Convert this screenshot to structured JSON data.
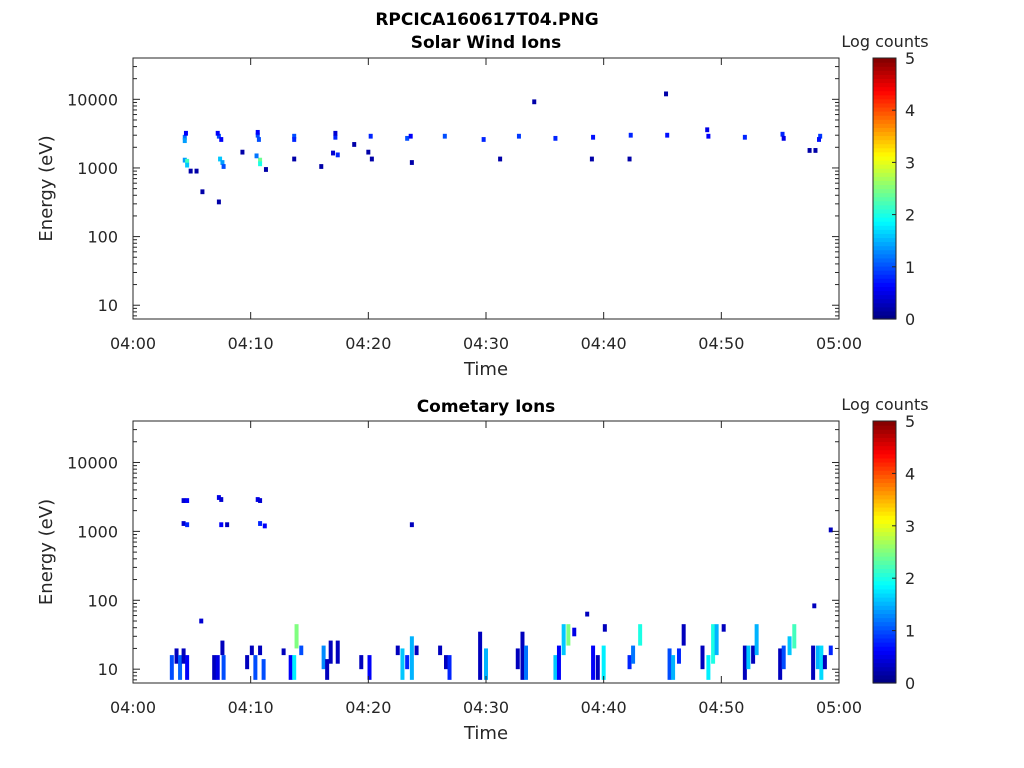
{
  "figure_title": "RPCICA160617T04.PNG",
  "chart_data": [
    {
      "type": "heatmap",
      "title": "Solar Wind Ions",
      "xlabel": "Time",
      "ylabel": "Energy (eV)",
      "x_unit": "minutes after 04:00",
      "xlim": [
        0,
        60
      ],
      "ylim": [
        6.3,
        40000
      ],
      "yscale": "log",
      "xticks": [
        "04:00",
        "04:10",
        "04:20",
        "04:30",
        "04:40",
        "04:50",
        "05:00"
      ],
      "yticks": [
        "10",
        "100",
        "1000",
        "10000"
      ],
      "colorbar": {
        "label": "Log counts",
        "range": [
          0,
          5
        ],
        "ticks": [
          "0",
          "1",
          "2",
          "3",
          "4",
          "5"
        ],
        "colormap": "jet"
      },
      "cells_format": "[minute, energy_eV, log_counts]",
      "cells": [
        [
          4.4,
          2800,
          1.2
        ],
        [
          4.4,
          2500,
          1.4
        ],
        [
          4.5,
          3200,
          0.6
        ],
        [
          4.4,
          1300,
          1.4
        ],
        [
          4.6,
          1250,
          2.2
        ],
        [
          4.6,
          1100,
          1.6
        ],
        [
          4.9,
          900,
          0.2
        ],
        [
          5.4,
          900,
          0.2
        ],
        [
          7.3,
          2900,
          1.0
        ],
        [
          7.2,
          3200,
          0.6
        ],
        [
          7.5,
          2600,
          0.6
        ],
        [
          7.4,
          1350,
          1.6
        ],
        [
          7.6,
          1200,
          1.4
        ],
        [
          7.7,
          1050,
          1.0
        ],
        [
          10.6,
          3000,
          1.0
        ],
        [
          10.6,
          3300,
          0.6
        ],
        [
          10.7,
          2600,
          1.0
        ],
        [
          10.8,
          1300,
          2.4
        ],
        [
          10.8,
          1150,
          2.0
        ],
        [
          10.5,
          1500,
          1.2
        ],
        [
          11.3,
          950,
          0.2
        ],
        [
          13.7,
          2900,
          1.0
        ],
        [
          13.7,
          2600,
          0.8
        ],
        [
          17.2,
          2800,
          0.8
        ],
        [
          17.2,
          3200,
          0.4
        ],
        [
          17.4,
          1550,
          0.8
        ],
        [
          17.0,
          1650,
          0.4
        ],
        [
          20.2,
          2900,
          0.8
        ],
        [
          23.3,
          2700,
          1.0
        ],
        [
          23.6,
          2900,
          0.6
        ],
        [
          26.5,
          2900,
          1.0
        ],
        [
          29.8,
          2600,
          0.8
        ],
        [
          32.8,
          2900,
          0.9
        ],
        [
          35.9,
          2700,
          0.8
        ],
        [
          39.1,
          2800,
          0.7
        ],
        [
          42.3,
          3000,
          0.8
        ],
        [
          45.4,
          3000,
          0.7
        ],
        [
          48.8,
          3600,
          0.5
        ],
        [
          48.9,
          2900,
          0.6
        ],
        [
          52.0,
          2800,
          0.8
        ],
        [
          55.2,
          3100,
          0.8
        ],
        [
          55.3,
          2700,
          0.5
        ],
        [
          58.4,
          2900,
          0.9
        ],
        [
          58.3,
          2600,
          0.7
        ],
        [
          34.1,
          9200,
          0.2
        ],
        [
          45.3,
          12000,
          0.2
        ],
        [
          5.9,
          450,
          0.2
        ],
        [
          7.3,
          320,
          0.2
        ],
        [
          9.3,
          1700,
          0.2
        ],
        [
          13.7,
          1350,
          0.2
        ],
        [
          16.0,
          1050,
          0.2
        ],
        [
          18.8,
          2200,
          0.2
        ],
        [
          20.0,
          1700,
          0.2
        ],
        [
          20.3,
          1350,
          0.2
        ],
        [
          23.7,
          1200,
          0.2
        ],
        [
          31.2,
          1350,
          0.2
        ],
        [
          39.0,
          1350,
          0.2
        ],
        [
          42.2,
          1350,
          0.2
        ],
        [
          57.5,
          1800,
          0.2
        ],
        [
          58.0,
          1800,
          0.2
        ]
      ]
    },
    {
      "type": "heatmap",
      "title": "Cometary Ions",
      "xlabel": "Time",
      "ylabel": "Energy (eV)",
      "x_unit": "minutes after 04:00",
      "xlim": [
        0,
        60
      ],
      "ylim": [
        6.3,
        40000
      ],
      "yscale": "log",
      "xticks": [
        "04:00",
        "04:10",
        "04:20",
        "04:30",
        "04:40",
        "04:50",
        "05:00"
      ],
      "yticks": [
        "10",
        "100",
        "1000",
        "10000"
      ],
      "colorbar": {
        "label": "Log counts",
        "range": [
          0,
          5
        ],
        "ticks": [
          "0",
          "1",
          "2",
          "3",
          "4",
          "5"
        ],
        "colormap": "jet"
      },
      "cells_format": "[minute, energy_eV, log_counts]",
      "cells": [
        [
          4.3,
          2800,
          0.4
        ],
        [
          4.6,
          2800,
          0.6
        ],
        [
          4.3,
          1300,
          0.4
        ],
        [
          4.6,
          1250,
          0.8
        ],
        [
          7.3,
          3100,
          0.5
        ],
        [
          7.5,
          2900,
          0.4
        ],
        [
          7.5,
          1250,
          0.6
        ],
        [
          8.0,
          1250,
          0.3
        ],
        [
          10.6,
          2900,
          0.5
        ],
        [
          10.8,
          2800,
          0.4
        ],
        [
          10.8,
          1300,
          0.8
        ],
        [
          11.2,
          1200,
          0.6
        ],
        [
          23.7,
          1250,
          0.3
        ],
        [
          59.3,
          1050,
          0.3
        ],
        [
          5.8,
          50,
          0.4
        ],
        [
          38.6,
          63,
          0.3
        ],
        [
          57.9,
          83,
          0.3
        ]
      ],
      "columns_format": "[minute, energy_low_eV, energy_high_eV, log_counts]",
      "columns": [
        [
          3.3,
          7,
          16,
          1.0
        ],
        [
          3.7,
          12,
          20,
          0.3
        ],
        [
          4.0,
          7,
          16,
          1.1
        ],
        [
          4.3,
          12,
          20,
          0.3
        ],
        [
          4.6,
          7,
          16,
          0.6
        ],
        [
          6.9,
          7,
          16,
          0.3
        ],
        [
          7.2,
          7,
          16,
          0.5
        ],
        [
          7.6,
          16,
          26,
          0.3
        ],
        [
          7.7,
          7,
          16,
          1.0
        ],
        [
          9.7,
          10,
          16,
          0.3
        ],
        [
          10.1,
          16,
          22,
          0.3
        ],
        [
          10.4,
          7,
          16,
          1.0
        ],
        [
          10.8,
          16,
          22,
          0.3
        ],
        [
          11.1,
          7,
          14,
          1.0
        ],
        [
          12.8,
          16,
          20,
          0.3
        ],
        [
          13.4,
          7,
          16,
          0.6
        ],
        [
          13.7,
          7,
          16,
          1.8
        ],
        [
          13.9,
          20,
          45,
          2.5
        ],
        [
          14.3,
          16,
          22,
          1.0
        ],
        [
          16.2,
          10,
          22,
          1.3
        ],
        [
          16.5,
          7,
          14,
          0.3
        ],
        [
          16.8,
          12,
          26,
          0.3
        ],
        [
          17.4,
          12,
          26,
          0.3
        ],
        [
          19.4,
          10,
          16,
          0.3
        ],
        [
          20.1,
          7,
          16,
          0.6
        ],
        [
          22.5,
          16,
          22,
          0.3
        ],
        [
          22.9,
          7,
          20,
          1.6
        ],
        [
          23.3,
          10,
          16,
          0.8
        ],
        [
          23.7,
          7,
          30,
          1.5
        ],
        [
          24.1,
          16,
          22,
          0.3
        ],
        [
          26.1,
          16,
          22,
          0.3
        ],
        [
          26.6,
          10,
          16,
          0.3
        ],
        [
          26.9,
          7,
          16,
          0.8
        ],
        [
          29.5,
          7,
          35,
          0.3
        ],
        [
          30.0,
          7,
          20,
          1.5
        ],
        [
          32.7,
          10,
          20,
          0.3
        ],
        [
          33.1,
          7,
          35,
          0.3
        ],
        [
          33.4,
          7,
          22,
          1.2
        ],
        [
          35.9,
          7,
          16,
          1.6
        ],
        [
          36.2,
          7,
          22,
          0.6
        ],
        [
          36.6,
          16,
          45,
          1.6
        ],
        [
          37.0,
          22,
          45,
          2.5
        ],
        [
          37.5,
          30,
          40,
          0.5
        ],
        [
          39.1,
          7,
          22,
          0.6
        ],
        [
          39.5,
          7,
          16,
          0.3
        ],
        [
          40.0,
          7,
          22,
          1.8
        ],
        [
          40.1,
          35,
          45,
          0.3
        ],
        [
          42.2,
          10,
          16,
          0.8
        ],
        [
          42.5,
          12,
          22,
          1.2
        ],
        [
          43.1,
          22,
          45,
          2.0
        ],
        [
          45.6,
          7,
          20,
          1.0
        ],
        [
          45.9,
          7,
          16,
          1.5
        ],
        [
          46.4,
          12,
          20,
          0.8
        ],
        [
          46.8,
          22,
          45,
          0.3
        ],
        [
          48.4,
          10,
          22,
          0.3
        ],
        [
          48.9,
          7,
          16,
          1.8
        ],
        [
          49.3,
          12,
          45,
          2.0
        ],
        [
          49.6,
          16,
          45,
          1.5
        ],
        [
          50.2,
          35,
          45,
          0.3
        ],
        [
          52.0,
          7,
          22,
          0.3
        ],
        [
          52.3,
          10,
          22,
          1.6
        ],
        [
          52.7,
          12,
          22,
          0.3
        ],
        [
          53.0,
          16,
          45,
          1.5
        ],
        [
          55.0,
          7,
          20,
          0.3
        ],
        [
          55.3,
          10,
          22,
          1.0
        ],
        [
          55.8,
          16,
          30,
          1.6
        ],
        [
          56.2,
          20,
          45,
          2.2
        ],
        [
          57.8,
          7,
          22,
          0.3
        ],
        [
          58.2,
          10,
          22,
          1.5
        ],
        [
          58.5,
          7,
          22,
          1.7
        ],
        [
          58.8,
          10,
          16,
          0.3
        ],
        [
          59.3,
          16,
          22,
          0.8
        ]
      ]
    }
  ]
}
